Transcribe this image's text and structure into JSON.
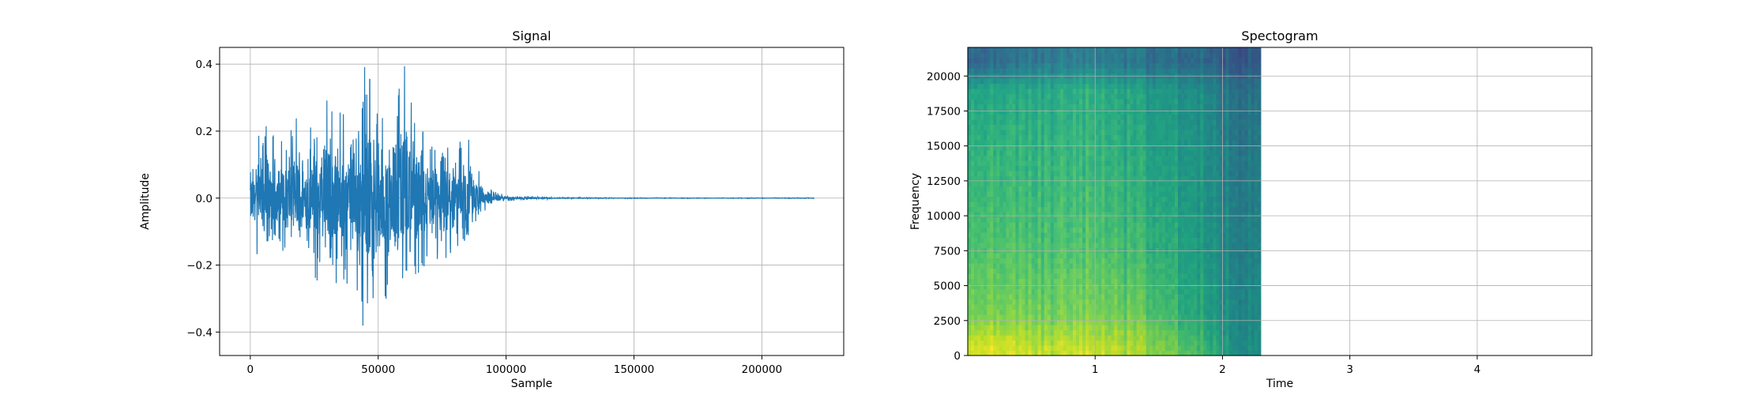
{
  "chart_data": [
    {
      "type": "line",
      "title": "Signal",
      "xlabel": "Sample",
      "ylabel": "Amplitude",
      "xlim": [
        -12000,
        232000
      ],
      "ylim": [
        -0.47,
        0.45
      ],
      "x_ticks": [
        0,
        50000,
        100000,
        150000,
        200000
      ],
      "x_tick_labels": [
        "0",
        "50000",
        "100000",
        "150000",
        "200000"
      ],
      "y_ticks": [
        -0.4,
        -0.2,
        0.0,
        0.2,
        0.4
      ],
      "y_tick_labels": [
        "−0.4",
        "−0.2",
        "0.0",
        "0.2",
        "0.4"
      ],
      "grid": true,
      "line_color": "#1f77b4",
      "series": [
        {
          "x": [
            0,
            5000,
            10000,
            15000,
            20000,
            25000,
            30000,
            35000,
            40000,
            45000,
            50000,
            55000,
            60000,
            65000,
            70000,
            75000,
            80000,
            85000,
            90000,
            95000,
            100000,
            120000,
            150000,
            180000,
            210000,
            220500
          ],
          "y_max": [
            0.14,
            0.22,
            0.2,
            0.24,
            0.26,
            0.22,
            0.3,
            0.28,
            0.18,
            0.41,
            0.26,
            0.24,
            0.41,
            0.24,
            0.18,
            0.16,
            0.19,
            0.21,
            0.07,
            0.02,
            0.01,
            0.002,
            0.001,
            0.001,
            0.001,
            0.001
          ],
          "y_min": [
            -0.11,
            -0.3,
            -0.19,
            -0.2,
            -0.24,
            -0.26,
            -0.34,
            -0.28,
            -0.26,
            -0.44,
            -0.3,
            -0.35,
            -0.28,
            -0.24,
            -0.18,
            -0.2,
            -0.15,
            -0.13,
            -0.05,
            -0.015,
            -0.01,
            -0.002,
            -0.001,
            -0.001,
            -0.001,
            -0.001
          ]
        }
      ]
    },
    {
      "type": "heatmap",
      "title": "Spectogram",
      "xlabel": "Time",
      "ylabel": "Frequency",
      "xlim": [
        0,
        4.9
      ],
      "ylim": [
        0,
        22050
      ],
      "x_ticks": [
        1,
        2,
        3,
        4
      ],
      "x_tick_labels": [
        "1",
        "2",
        "3",
        "4"
      ],
      "y_ticks": [
        0,
        2500,
        5000,
        7500,
        10000,
        12500,
        15000,
        17500,
        20000
      ],
      "y_tick_labels": [
        "0",
        "2500",
        "5000",
        "7500",
        "10000",
        "12500",
        "15000",
        "17500",
        "20000"
      ],
      "grid": true,
      "colormap": "viridis",
      "data_time_extent": [
        0,
        2.3
      ],
      "time_bins": [
        0.2,
        0.6,
        1.0,
        1.4,
        1.8,
        2.15
      ],
      "freq_bins": [
        500,
        3000,
        8000,
        14000,
        19000,
        21000
      ],
      "intensity": [
        [
          0.95,
          0.9,
          0.92,
          0.85,
          0.72,
          0.5
        ],
        [
          0.8,
          0.78,
          0.8,
          0.75,
          0.62,
          0.48
        ],
        [
          0.72,
          0.7,
          0.72,
          0.66,
          0.58,
          0.45
        ],
        [
          0.66,
          0.65,
          0.66,
          0.6,
          0.55,
          0.42
        ],
        [
          0.6,
          0.6,
          0.62,
          0.56,
          0.52,
          0.38
        ],
        [
          0.35,
          0.4,
          0.42,
          0.38,
          0.36,
          0.28
        ]
      ]
    }
  ]
}
